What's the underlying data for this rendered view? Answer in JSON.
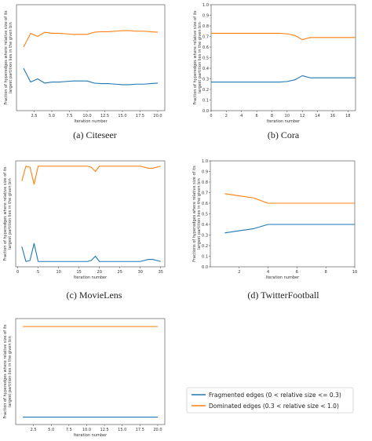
{
  "colors": {
    "fragmented": "#1f77b4",
    "dominated": "#ff7f0e"
  },
  "legend": {
    "fragmented": "Fragmented edges (0 < relative size <= 0.3)",
    "dominated": "Dominated edges (0.3 < relative size < 1.0)"
  },
  "chart_data": [
    {
      "type": "line",
      "caption": "(a) Citeseer",
      "xlabel": "Iteration number",
      "ylabel_lines": [
        "Fraction of hyperedges where relative size of its",
        "largest partition lies in the given bin"
      ],
      "xlim": [
        0,
        21
      ],
      "ylim": [
        0,
        1
      ],
      "xticks": [
        "2.5",
        "5.0",
        "7.5",
        "10.0",
        "12.5",
        "15.0",
        "17.5",
        "20.0"
      ],
      "xtick_values": [
        2.5,
        5.0,
        7.5,
        10.0,
        12.5,
        15.0,
        17.5,
        20.0
      ],
      "yticks": [],
      "x": [
        1,
        2,
        3,
        4,
        5,
        6,
        7,
        8,
        9,
        10,
        11,
        12,
        13,
        14,
        15,
        16,
        17,
        18,
        19,
        20
      ],
      "series": [
        {
          "key": "fragmented",
          "values": [
            0.4,
            0.27,
            0.3,
            0.26,
            0.27,
            0.27,
            0.275,
            0.28,
            0.28,
            0.28,
            0.26,
            0.255,
            0.255,
            0.25,
            0.245,
            0.245,
            0.25,
            0.25,
            0.255,
            0.26
          ]
        },
        {
          "key": "dominated",
          "values": [
            0.6,
            0.73,
            0.7,
            0.74,
            0.73,
            0.73,
            0.725,
            0.72,
            0.72,
            0.72,
            0.74,
            0.745,
            0.745,
            0.75,
            0.755,
            0.755,
            0.75,
            0.75,
            0.745,
            0.74
          ]
        }
      ]
    },
    {
      "type": "line",
      "caption": "(b) Cora",
      "xlabel": "Iteration number",
      "ylabel_lines": [
        "Fraction of hyperedges where relative size of its",
        "largest partition lies in the given bin"
      ],
      "xlim": [
        0,
        19
      ],
      "ylim": [
        0,
        1
      ],
      "xticks": [
        "0",
        "2",
        "4",
        "6",
        "8",
        "10",
        "12",
        "14",
        "16",
        "18"
      ],
      "xtick_values": [
        0,
        2,
        4,
        6,
        8,
        10,
        12,
        14,
        16,
        18
      ],
      "yticks": [
        "0.0",
        "0.1",
        "0.2",
        "0.3",
        "0.4",
        "0.5",
        "0.6",
        "0.7",
        "0.8",
        "0.9",
        "1.0"
      ],
      "x": [
        0,
        1,
        2,
        3,
        4,
        5,
        6,
        7,
        8,
        9,
        10,
        11,
        12,
        13,
        14,
        15,
        16,
        17,
        18,
        19
      ],
      "series": [
        {
          "key": "fragmented",
          "values": [
            0.27,
            0.27,
            0.27,
            0.27,
            0.27,
            0.27,
            0.27,
            0.27,
            0.27,
            0.27,
            0.275,
            0.29,
            0.33,
            0.31,
            0.31,
            0.31,
            0.31,
            0.31,
            0.31,
            0.31
          ]
        },
        {
          "key": "dominated",
          "values": [
            0.73,
            0.73,
            0.73,
            0.73,
            0.73,
            0.73,
            0.73,
            0.73,
            0.73,
            0.73,
            0.725,
            0.71,
            0.67,
            0.69,
            0.69,
            0.69,
            0.69,
            0.69,
            0.69,
            0.69
          ]
        }
      ]
    },
    {
      "type": "line",
      "caption": "(c) MovieLens",
      "xlabel": "Iteration number",
      "ylabel_lines": [
        "Fraction of hyperedges where relative size of its",
        "largest partition lies in the given bin"
      ],
      "xlim": [
        -0.5,
        36
      ],
      "ylim": [
        0,
        1
      ],
      "xticks": [
        "0",
        "5",
        "10",
        "15",
        "20",
        "25",
        "30",
        "35"
      ],
      "xtick_values": [
        0,
        5,
        10,
        15,
        20,
        25,
        30,
        35
      ],
      "yticks": [],
      "x": [
        1,
        2,
        3,
        4,
        5,
        6,
        7,
        8,
        9,
        10,
        11,
        12,
        13,
        14,
        15,
        16,
        17,
        18,
        19,
        20,
        21,
        22,
        23,
        24,
        25,
        26,
        27,
        28,
        29,
        30,
        31,
        32,
        33,
        34,
        35
      ],
      "series": [
        {
          "key": "fragmented",
          "values": [
            0.19,
            0.05,
            0.06,
            0.22,
            0.05,
            0.05,
            0.05,
            0.05,
            0.05,
            0.05,
            0.05,
            0.05,
            0.05,
            0.05,
            0.05,
            0.05,
            0.05,
            0.06,
            0.1,
            0.05,
            0.05,
            0.05,
            0.05,
            0.05,
            0.05,
            0.05,
            0.05,
            0.05,
            0.05,
            0.05,
            0.06,
            0.07,
            0.07,
            0.06,
            0.05
          ]
        },
        {
          "key": "dominated",
          "values": [
            0.81,
            0.95,
            0.94,
            0.78,
            0.95,
            0.95,
            0.95,
            0.95,
            0.95,
            0.95,
            0.95,
            0.95,
            0.95,
            0.95,
            0.95,
            0.95,
            0.95,
            0.94,
            0.9,
            0.95,
            0.95,
            0.95,
            0.95,
            0.95,
            0.95,
            0.95,
            0.95,
            0.95,
            0.95,
            0.95,
            0.94,
            0.93,
            0.93,
            0.94,
            0.95
          ]
        }
      ]
    },
    {
      "type": "line",
      "caption": "(d) TwitterFootball",
      "xlabel": "Iteration number",
      "ylabel_lines": [
        "Fractions of hyperedges where relative size of its",
        "largest partition lies in the given bin"
      ],
      "xlim": [
        0,
        10
      ],
      "ylim": [
        0,
        1
      ],
      "xticks": [
        "2",
        "4",
        "6",
        "8",
        "10"
      ],
      "xtick_values": [
        2,
        4,
        6,
        8,
        10
      ],
      "yticks": [
        "0.0",
        "0.1",
        "0.2",
        "0.3",
        "0.4",
        "0.5",
        "0.6",
        "0.7",
        "0.8",
        "0.9",
        "1.0"
      ],
      "x": [
        1,
        2,
        3,
        4,
        5,
        6,
        7,
        8,
        9,
        10
      ],
      "series": [
        {
          "key": "fragmented",
          "values": [
            0.32,
            0.34,
            0.36,
            0.4,
            0.4,
            0.4,
            0.4,
            0.4,
            0.4,
            0.4
          ]
        },
        {
          "key": "dominated",
          "values": [
            0.69,
            0.67,
            0.65,
            0.6,
            0.6,
            0.6,
            0.6,
            0.6,
            0.6,
            0.6
          ]
        }
      ]
    },
    {
      "type": "line",
      "caption": "",
      "xlabel": "Iteration number",
      "ylabel_lines": [
        "Fraction of hyperedges where relative size of its",
        "largest partition lies in the given bin"
      ],
      "xlim": [
        0,
        21
      ],
      "ylim": [
        0,
        1
      ],
      "xticks": [
        "2.5",
        "5.0",
        "7.5",
        "10.0",
        "12.5",
        "15.0",
        "17.5",
        "20.0"
      ],
      "xtick_values": [
        2.5,
        5.0,
        7.5,
        10.0,
        12.5,
        15.0,
        17.5,
        20.0
      ],
      "yticks": [],
      "x": [
        1,
        2,
        3,
        4,
        5,
        6,
        7,
        8,
        9,
        10,
        11,
        12,
        13,
        14,
        15,
        16,
        17,
        18,
        19,
        20
      ],
      "series": [
        {
          "key": "fragmented",
          "values": [
            0.07,
            0.07,
            0.07,
            0.07,
            0.07,
            0.07,
            0.07,
            0.07,
            0.07,
            0.07,
            0.07,
            0.07,
            0.07,
            0.07,
            0.07,
            0.07,
            0.07,
            0.07,
            0.07,
            0.07
          ]
        },
        {
          "key": "dominated",
          "values": [
            0.925,
            0.925,
            0.925,
            0.925,
            0.925,
            0.925,
            0.925,
            0.925,
            0.925,
            0.925,
            0.925,
            0.925,
            0.925,
            0.925,
            0.925,
            0.925,
            0.925,
            0.925,
            0.925,
            0.925
          ]
        }
      ]
    }
  ]
}
